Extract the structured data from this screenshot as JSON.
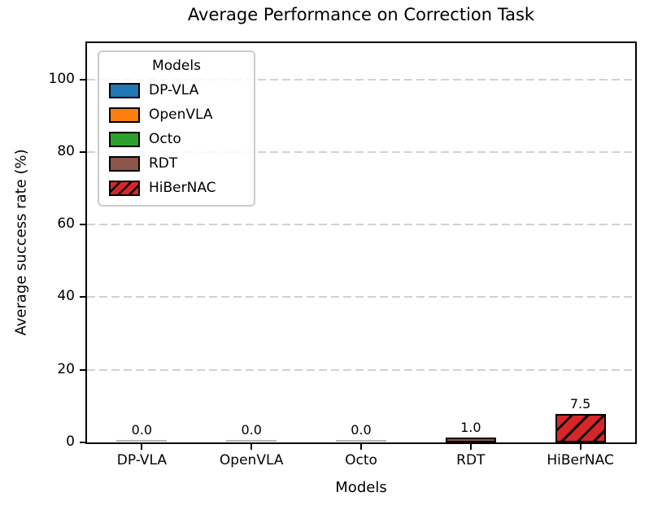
{
  "figure": {
    "title": "Average Performance on Correction Task",
    "xlabel": "Models",
    "ylabel": "Average success rate (%)"
  },
  "legend": {
    "title": "Models",
    "entries": [
      {
        "label": "DP-VLA",
        "color": "#1f77b4",
        "hatch": false
      },
      {
        "label": "OpenVLA",
        "color": "#ff7f0e",
        "hatch": false
      },
      {
        "label": "Octo",
        "color": "#2ca02c",
        "hatch": false
      },
      {
        "label": "RDT",
        "color": "#8c564b",
        "hatch": false
      },
      {
        "label": "HiBerNAC",
        "color": "#d62728",
        "hatch": true
      }
    ]
  },
  "chart_data": {
    "type": "bar",
    "title": "Average Performance on Correction Task",
    "xlabel": "Models",
    "ylabel": "Average success rate (%)",
    "categories": [
      "DP-VLA",
      "OpenVLA",
      "Octo",
      "RDT",
      "HiBerNAC"
    ],
    "values": [
      0.0,
      0.0,
      0.0,
      1.0,
      7.5
    ],
    "value_labels": [
      "0.0",
      "0.0",
      "0.0",
      "1.0",
      "7.5"
    ],
    "bar_colors": [
      "#1f77b4",
      "#ff7f0e",
      "#2ca02c",
      "#8c564b",
      "#d62728"
    ],
    "bar_hatches": [
      null,
      null,
      null,
      null,
      "/"
    ],
    "bar_edge_color": "#000000",
    "zero_bar_color": "#b4b4b4",
    "ylim": [
      0,
      110
    ],
    "yticks": [
      0,
      20,
      40,
      60,
      80,
      100
    ],
    "grid": "horizontal-dashed",
    "grid_color": "#d2d2d2",
    "legend_position": "upper-left",
    "legend_title": "Models"
  }
}
